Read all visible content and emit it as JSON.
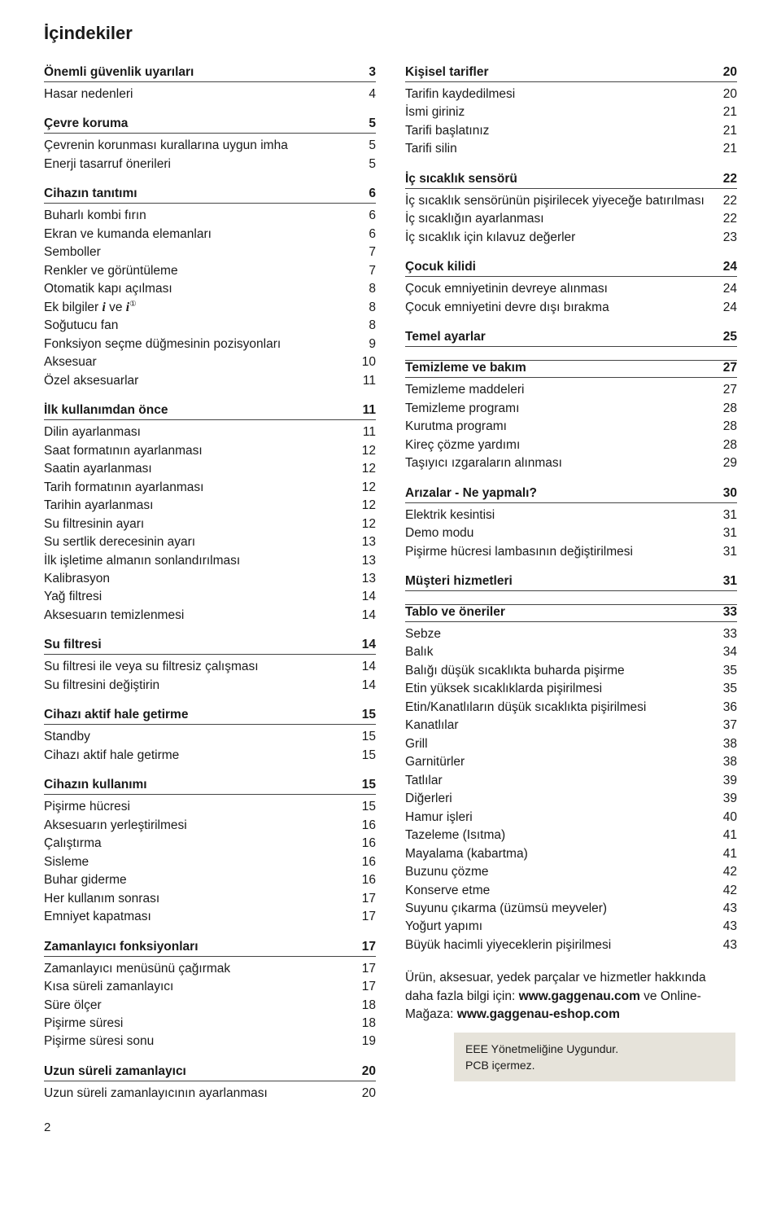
{
  "title": "İçindekiler",
  "pageNumber": "2",
  "footerNote": {
    "line1": "Ürün, aksesuar, yedek parçalar ve hizmetler hakkında daha fazla bilgi için: ",
    "site1": "www.gaggenau.com",
    "mid": " ve Online-Mağaza: ",
    "site2": "www.gaggenau-eshop.com"
  },
  "eee": {
    "line1": "EEE Yönetmeliğine Uygundur.",
    "line2": "PCB içermez."
  },
  "left": [
    {
      "type": "heading",
      "label": "Önemli güvenlik uyarıları",
      "page": "3"
    },
    {
      "type": "row",
      "label": "Hasar nedenleri",
      "page": "4"
    },
    {
      "type": "heading",
      "label": "Çevre koruma",
      "page": "5"
    },
    {
      "type": "row",
      "label": "Çevrenin korunması kurallarına uygun imha",
      "page": "5"
    },
    {
      "type": "row",
      "label": "Enerji tasarruf önerileri",
      "page": "5"
    },
    {
      "type": "heading",
      "label": "Cihazın tanıtımı",
      "page": "6"
    },
    {
      "type": "row",
      "label": "Buharlı kombi fırın",
      "page": "6"
    },
    {
      "type": "row",
      "label": "Ekran ve kumanda elemanları",
      "page": "6"
    },
    {
      "type": "row",
      "label": "Semboller",
      "page": "7"
    },
    {
      "type": "row",
      "label": "Renkler ve görüntüleme",
      "page": "7"
    },
    {
      "type": "row",
      "label": "Otomatik kapı açılması",
      "page": "8"
    },
    {
      "type": "row",
      "html": "Ek bilgiler <span class='icon-i'>i</span> ve <span class='icon-i'>i</span><span class='sup'>①</span>",
      "page": "8"
    },
    {
      "type": "row",
      "label": "Soğutucu fan",
      "page": "8"
    },
    {
      "type": "row",
      "label": "Fonksiyon seçme düğmesinin pozisyonları",
      "page": "9"
    },
    {
      "type": "row",
      "label": "Aksesuar",
      "page": "10"
    },
    {
      "type": "row",
      "label": "Özel aksesuarlar",
      "page": "11"
    },
    {
      "type": "heading",
      "label": "İlk kullanımdan önce",
      "page": "11"
    },
    {
      "type": "row",
      "label": "Dilin ayarlanması",
      "page": "11"
    },
    {
      "type": "row",
      "label": "Saat formatının ayarlanması",
      "page": "12"
    },
    {
      "type": "row",
      "label": "Saatin ayarlanması",
      "page": "12"
    },
    {
      "type": "row",
      "label": "Tarih formatının ayarlanması",
      "page": "12"
    },
    {
      "type": "row",
      "label": "Tarihin ayarlanması",
      "page": "12"
    },
    {
      "type": "row",
      "label": "Su filtresinin ayarı",
      "page": "12"
    },
    {
      "type": "row",
      "label": "Su sertlik derecesinin ayarı",
      "page": "13"
    },
    {
      "type": "row",
      "label": "İlk işletime almanın sonlandırılması",
      "page": "13"
    },
    {
      "type": "row",
      "label": "Kalibrasyon",
      "page": "13"
    },
    {
      "type": "row",
      "label": "Yağ filtresi",
      "page": "14"
    },
    {
      "type": "row",
      "label": "Aksesuarın temizlenmesi",
      "page": "14"
    },
    {
      "type": "heading",
      "label": "Su filtresi",
      "page": "14"
    },
    {
      "type": "row",
      "label": "Su filtresi ile veya su filtresiz çalışması",
      "page": "14"
    },
    {
      "type": "row",
      "label": "Su filtresini değiştirin",
      "page": "14"
    },
    {
      "type": "heading",
      "label": "Cihazı aktif hale getirme",
      "page": "15"
    },
    {
      "type": "row",
      "label": "Standby",
      "page": "15"
    },
    {
      "type": "row",
      "label": "Cihazı aktif hale getirme",
      "page": "15"
    },
    {
      "type": "heading",
      "label": "Cihazın kullanımı",
      "page": "15"
    },
    {
      "type": "row",
      "label": "Pişirme hücresi",
      "page": "15"
    },
    {
      "type": "row",
      "label": "Aksesuarın yerleştirilmesi",
      "page": "16"
    },
    {
      "type": "row",
      "label": "Çalıştırma",
      "page": "16"
    },
    {
      "type": "row",
      "label": "Sisleme",
      "page": "16"
    },
    {
      "type": "row",
      "label": "Buhar giderme",
      "page": "16"
    },
    {
      "type": "row",
      "label": "Her kullanım sonrası",
      "page": "17"
    },
    {
      "type": "row",
      "label": "Emniyet kapatması",
      "page": "17"
    },
    {
      "type": "heading",
      "label": "Zamanlayıcı fonksiyonları",
      "page": "17"
    },
    {
      "type": "row",
      "label": "Zamanlayıcı menüsünü çağırmak",
      "page": "17"
    },
    {
      "type": "row",
      "label": "Kısa süreli zamanlayıcı",
      "page": "17"
    },
    {
      "type": "row",
      "label": "Süre ölçer",
      "page": "18"
    },
    {
      "type": "row",
      "label": "Pişirme süresi",
      "page": "18"
    },
    {
      "type": "row",
      "label": "Pişirme süresi sonu",
      "page": "19"
    },
    {
      "type": "heading",
      "label": "Uzun süreli zamanlayıcı",
      "page": "20"
    },
    {
      "type": "row",
      "label": "Uzun süreli zamanlayıcının ayarlanması",
      "page": "20"
    }
  ],
  "right": [
    {
      "type": "heading",
      "label": "Kişisel tarifler",
      "page": "20"
    },
    {
      "type": "row",
      "label": "Tarifin kaydedilmesi",
      "page": "20"
    },
    {
      "type": "row",
      "label": "İsmi giriniz",
      "page": "21"
    },
    {
      "type": "row",
      "label": "Tarifi başlatınız",
      "page": "21"
    },
    {
      "type": "row",
      "label": "Tarifi silin",
      "page": "21"
    },
    {
      "type": "heading",
      "label": "İç sıcaklık sensörü",
      "page": "22"
    },
    {
      "type": "row",
      "label": "İç sıcaklık sensörünün pişirilecek yiyeceğe batırılması",
      "page": "22"
    },
    {
      "type": "row",
      "label": "İç sıcaklığın ayarlanması",
      "page": "22"
    },
    {
      "type": "row",
      "label": "İç sıcaklık için kılavuz değerler",
      "page": "23"
    },
    {
      "type": "heading",
      "label": "Çocuk kilidi",
      "page": "24"
    },
    {
      "type": "row",
      "label": "Çocuk emniyetinin devreye alınması",
      "page": "24"
    },
    {
      "type": "row",
      "label": "Çocuk emniyetini devre dışı bırakma",
      "page": "24"
    },
    {
      "type": "heading",
      "label": "Temel ayarlar",
      "page": "25"
    },
    {
      "type": "heading",
      "label": "Temizleme ve bakım",
      "page": "27"
    },
    {
      "type": "row",
      "label": "Temizleme maddeleri",
      "page": "27"
    },
    {
      "type": "row",
      "label": "Temizleme programı",
      "page": "28"
    },
    {
      "type": "row",
      "label": "Kurutma programı",
      "page": "28"
    },
    {
      "type": "row",
      "label": "Kireç çözme yardımı",
      "page": "28"
    },
    {
      "type": "row",
      "label": "Taşıyıcı ızgaraların alınması",
      "page": "29"
    },
    {
      "type": "heading",
      "label": "Arızalar - Ne yapmalı?",
      "page": "30"
    },
    {
      "type": "row",
      "label": "Elektrik kesintisi",
      "page": "31"
    },
    {
      "type": "row",
      "label": "Demo modu",
      "page": "31"
    },
    {
      "type": "row",
      "label": "Pişirme hücresi lambasının değiştirilmesi",
      "page": "31"
    },
    {
      "type": "heading",
      "label": "Müşteri hizmetleri",
      "page": "31"
    },
    {
      "type": "heading",
      "label": "Tablo ve öneriler",
      "page": "33"
    },
    {
      "type": "row",
      "label": "Sebze",
      "page": "33"
    },
    {
      "type": "row",
      "label": "Balık",
      "page": "34"
    },
    {
      "type": "row",
      "label": "Balığı düşük sıcaklıkta buharda pişirme",
      "page": "35"
    },
    {
      "type": "row",
      "label": "Etin yüksek sıcaklıklarda pişirilmesi",
      "page": "35"
    },
    {
      "type": "row",
      "label": "Etin/Kanatlıların düşük sıcaklıkta pişirilmesi",
      "page": "36"
    },
    {
      "type": "row",
      "label": "Kanatlılar",
      "page": "37"
    },
    {
      "type": "row",
      "label": "Grill",
      "page": "38"
    },
    {
      "type": "row",
      "label": "Garnitürler",
      "page": "38"
    },
    {
      "type": "row",
      "label": "Tatlılar",
      "page": "39"
    },
    {
      "type": "row",
      "label": "Diğerleri",
      "page": "39"
    },
    {
      "type": "row",
      "label": "Hamur işleri",
      "page": "40"
    },
    {
      "type": "row",
      "label": "Tazeleme (Isıtma)",
      "page": "41"
    },
    {
      "type": "row",
      "label": "Mayalama (kabartma)",
      "page": "41"
    },
    {
      "type": "row",
      "label": "Buzunu çözme",
      "page": "42"
    },
    {
      "type": "row",
      "label": "Konserve etme",
      "page": "42"
    },
    {
      "type": "row",
      "label": "Suyunu çıkarma (üzümsü meyveler)",
      "page": "43"
    },
    {
      "type": "row",
      "label": "Yoğurt yapımı",
      "page": "43"
    },
    {
      "type": "row",
      "label": "Büyük hacimli yiyeceklerin pişirilmesi",
      "page": "43"
    }
  ]
}
